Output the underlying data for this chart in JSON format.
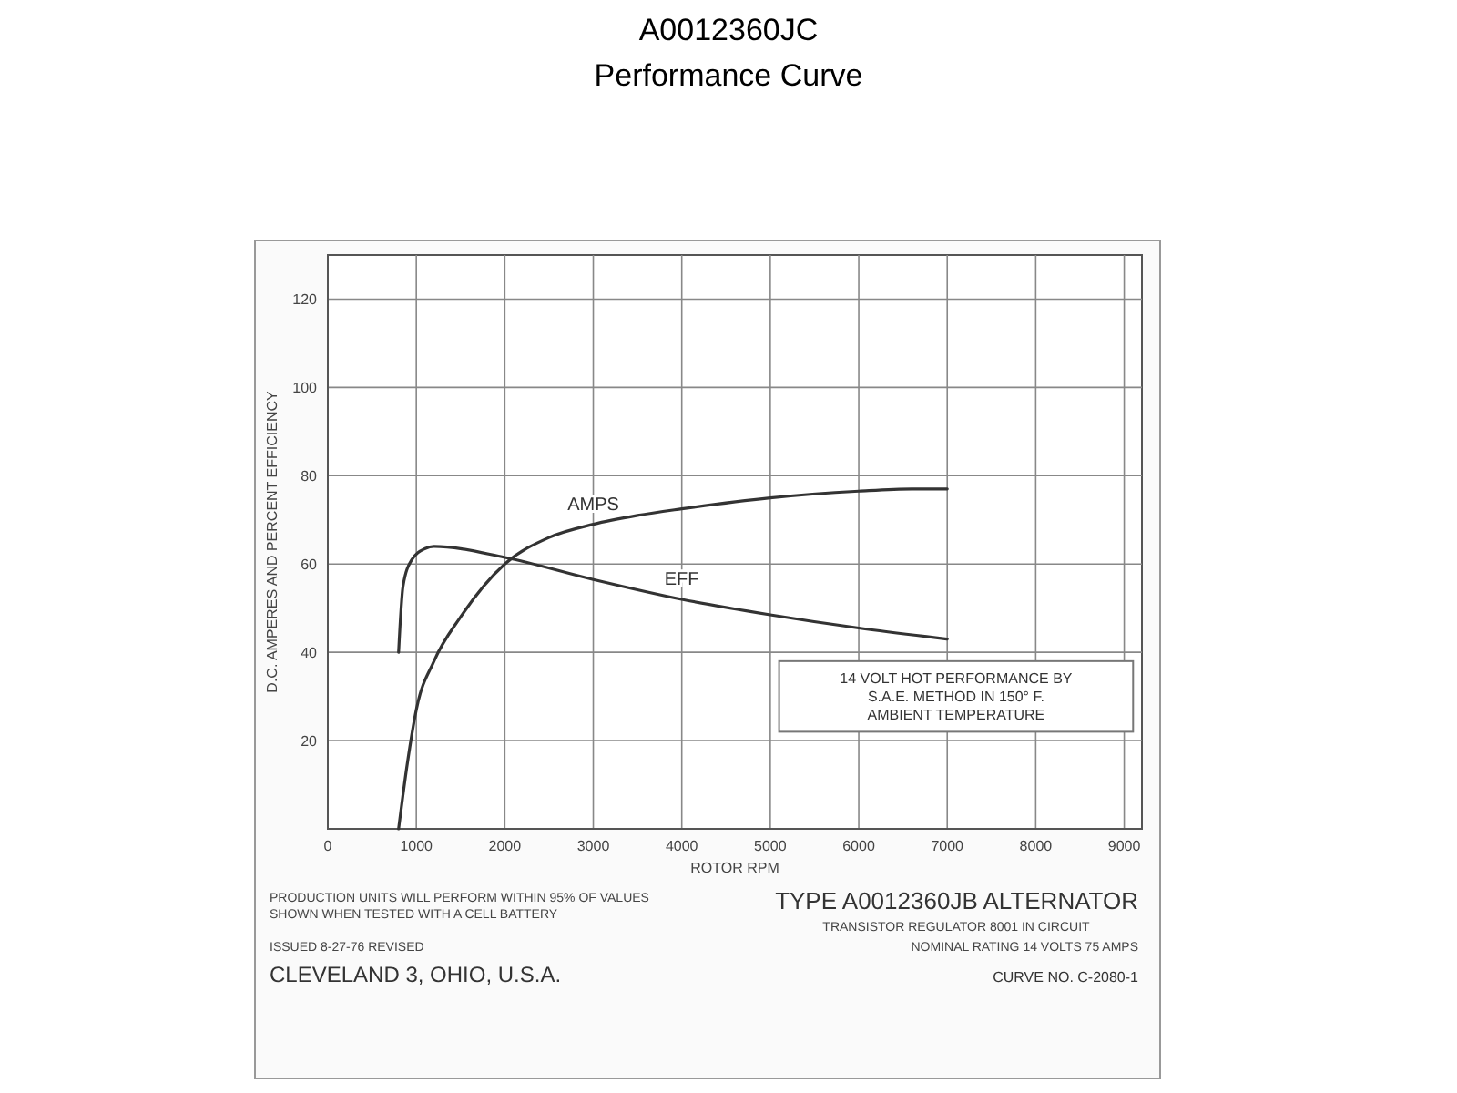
{
  "chart_data": {
    "type": "line",
    "title": "A0012360JC",
    "subtitle": "Performance Curve",
    "xlabel": "ROTOR RPM",
    "ylabel": "D.C. AMPERES AND PERCENT EFFICIENCY",
    "xlim": [
      0,
      9200
    ],
    "xticks": [
      0,
      1000,
      2000,
      3000,
      4000,
      5000,
      6000,
      7000,
      8000,
      9000
    ],
    "ylim": [
      0,
      130
    ],
    "yticks": [
      {
        "value": 0,
        "label": null
      },
      20,
      40,
      60,
      80,
      100,
      120
    ],
    "grid": true,
    "marker": "none",
    "line_style": "solid",
    "series": [
      {
        "name": "AMPS",
        "color": "#333333",
        "x": [
          800,
          900,
          1000,
          1200,
          1500,
          2000,
          2500,
          3000,
          3500,
          4000,
          5000,
          6000,
          6600,
          7000
        ],
        "values": [
          0,
          15,
          27,
          38,
          48,
          60,
          66,
          69,
          71,
          72.5,
          75,
          76.5,
          77,
          77
        ]
      },
      {
        "name": "EFF",
        "color": "#333333",
        "x": [
          800,
          850,
          950,
          1100,
          1200,
          2000,
          3000,
          4000,
          5000,
          6000,
          7000
        ],
        "values": [
          40,
          55,
          61,
          63.5,
          64,
          61.5,
          56.5,
          52,
          48.5,
          45.5,
          43
        ]
      }
    ],
    "annotations": [
      "14 VOLT HOT PERFORMANCE BY S.A.E. METHOD IN 150° F. AMBIENT TEMPERATURE",
      "TYPE A0012360JB ALTERNATOR",
      "TRANSISTOR REGULATOR 8001 IN CIRCUIT",
      "NOMINAL RATING 14 VOLTS 75 AMPS",
      "PRODUCTION UNITS WILL PERFORM WITHIN 95% OF VALUES SHOWN WHEN TESTED WITH A CELL BATTERY",
      "ISSUED 8-27-76   REVISED",
      "CLEVELAND 3, OHIO, U.S.A.",
      "CURVE NO. C-2080-1"
    ]
  }
}
